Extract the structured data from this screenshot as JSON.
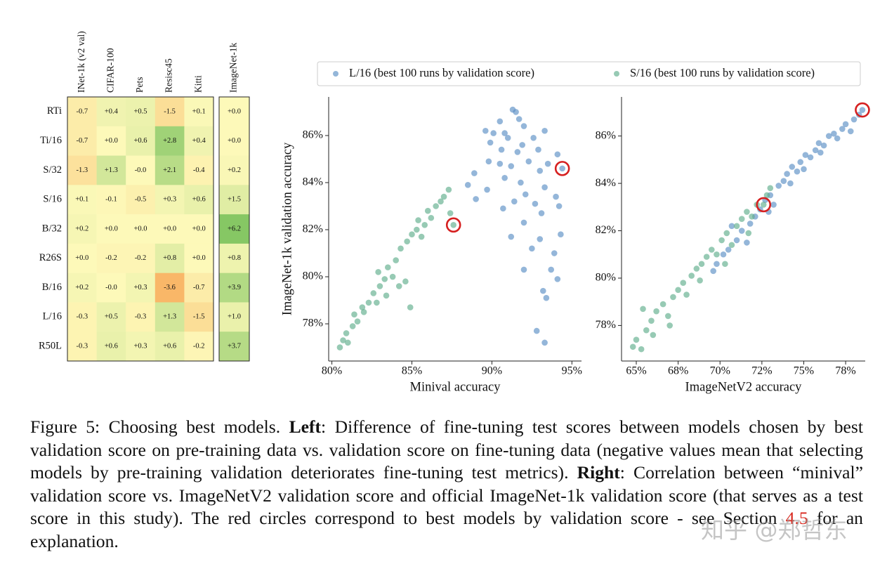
{
  "chart_data": [
    {
      "type": "heatmap",
      "rows": [
        "RTi",
        "Ti/16",
        "S/32",
        "S/16",
        "B/32",
        "R26S",
        "B/16",
        "L/16",
        "R50L"
      ],
      "columns": [
        "INet-1k (v2 val)",
        "CIFAR-100",
        "Pets",
        "Resisc45",
        "Kitti",
        "ImageNet-1k"
      ],
      "values": [
        [
          -0.7,
          0.4,
          0.5,
          -1.5,
          0.1,
          0.0
        ],
        [
          -0.7,
          0.0,
          0.6,
          2.8,
          0.4,
          0.0
        ],
        [
          -1.3,
          1.3,
          -0.0,
          2.1,
          -0.4,
          0.2
        ],
        [
          0.1,
          -0.1,
          -0.5,
          0.3,
          0.6,
          1.5
        ],
        [
          0.2,
          0.0,
          0.0,
          0.0,
          0.0,
          6.2
        ],
        [
          0.0,
          -0.2,
          -0.2,
          0.8,
          0.0,
          0.8
        ],
        [
          0.2,
          -0.0,
          0.3,
          -3.6,
          -0.7,
          3.9
        ],
        [
          -0.3,
          0.5,
          -0.3,
          1.3,
          -1.5,
          1.0
        ],
        [
          -0.3,
          0.6,
          0.3,
          0.6,
          -0.2,
          3.7
        ]
      ],
      "value_labels": [
        [
          "-0.7",
          "+0.4",
          "+0.5",
          "-1.5",
          "+0.1",
          "+0.0"
        ],
        [
          "-0.7",
          "+0.0",
          "+0.6",
          "+2.8",
          "+0.4",
          "+0.0"
        ],
        [
          "-1.3",
          "+1.3",
          "-0.0",
          "+2.1",
          "-0.4",
          "+0.2"
        ],
        [
          "+0.1",
          "-0.1",
          "-0.5",
          "+0.3",
          "+0.6",
          "+1.5"
        ],
        [
          "+0.2",
          "+0.0",
          "+0.0",
          "+0.0",
          "+0.0",
          "+6.2"
        ],
        [
          "+0.0",
          "-0.2",
          "-0.2",
          "+0.8",
          "+0.0",
          "+0.8"
        ],
        [
          "+0.2",
          "-0.0",
          "+0.3",
          "-3.6",
          "-0.7",
          "+3.9"
        ],
        [
          "-0.3",
          "+0.5",
          "-0.3",
          "+1.3",
          "-1.5",
          "+1.0"
        ],
        [
          "-0.3",
          "+0.6",
          "+0.3",
          "+0.6",
          "-0.2",
          "+3.7"
        ]
      ],
      "colors": [
        "#f9b768",
        "#fdf9b9",
        "#86c764"
      ]
    },
    {
      "type": "scatter",
      "x_label": "Minival accuracy",
      "y_label": "ImageNet-1k validation accuracy",
      "xlim": [
        79.8,
        95.6
      ],
      "ylim": [
        76.42,
        87.64
      ],
      "xticks": [
        {
          "value": 80,
          "label": "80%"
        },
        {
          "value": 85,
          "label": "85%"
        },
        {
          "value": 90,
          "label": "90%"
        },
        {
          "value": 95,
          "label": "95%"
        }
      ],
      "yticks": [
        {
          "value": 78,
          "label": "78%"
        },
        {
          "value": 80,
          "label": "80%"
        },
        {
          "value": 82,
          "label": "82%"
        },
        {
          "value": 84,
          "label": "84%"
        },
        {
          "value": 86,
          "label": "86%"
        }
      ],
      "series": [
        {
          "name": "L/16 (best 100 runs by validation score)",
          "color": "#5b8fc4",
          "x": [
            91.3,
            91.5,
            91.7,
            90.5,
            92.0,
            89.6,
            90.1,
            90.8,
            93.3,
            91.0,
            92.6,
            89.9,
            91.9,
            90.6,
            91.6,
            92.9,
            89.8,
            90.5,
            91.2,
            92.3,
            93.5,
            94.1,
            88.9,
            90.8,
            91.8,
            93.0,
            94.4,
            88.5,
            89.7,
            92.1,
            93.3,
            94.0,
            89.0,
            91.4,
            92.7,
            94.2,
            90.7,
            93.1,
            92.0,
            94.3,
            91.2,
            93.0,
            92.5,
            93.9,
            92.0,
            93.7,
            94.1,
            93.2,
            93.4,
            92.8,
            93.3
          ],
          "values": [
            87.1,
            87.0,
            86.7,
            86.6,
            86.4,
            86.2,
            86.1,
            86.1,
            86.2,
            85.9,
            85.9,
            85.7,
            85.6,
            85.4,
            85.3,
            85.4,
            84.9,
            84.8,
            84.7,
            84.9,
            84.8,
            85.2,
            84.4,
            84.2,
            84.0,
            84.5,
            84.6,
            83.9,
            83.7,
            83.5,
            83.8,
            83.4,
            83.3,
            83.2,
            83.1,
            83.0,
            82.9,
            82.7,
            82.3,
            81.8,
            81.7,
            81.6,
            81.2,
            81.0,
            80.3,
            80.3,
            79.9,
            79.4,
            79.1,
            77.7,
            77.2
          ]
        },
        {
          "name": "S/16 (best 100 runs by validation score)",
          "color": "#5fae8c",
          "x": [
            80.5,
            80.7,
            80.9,
            81.3,
            81.0,
            81.6,
            82.0,
            82.3,
            81.9,
            82.6,
            83.0,
            82.8,
            83.3,
            83.8,
            83.5,
            84.0,
            84.3,
            84.7,
            84.6,
            84.9,
            85.0,
            85.3,
            85.4,
            85.8,
            86.0,
            86.2,
            86.5,
            86.8,
            87.0,
            87.3,
            87.6,
            87.4,
            83.4,
            82.9,
            84.2,
            85.6,
            81.4
          ],
          "values": [
            77.0,
            77.3,
            77.6,
            77.9,
            77.2,
            78.1,
            78.5,
            78.9,
            78.7,
            79.3,
            79.6,
            78.9,
            79.9,
            80.0,
            80.4,
            80.7,
            81.2,
            81.5,
            79.8,
            78.7,
            81.8,
            82.0,
            82.4,
            82.2,
            82.8,
            82.5,
            83.0,
            83.2,
            83.4,
            83.7,
            82.2,
            82.7,
            79.2,
            80.2,
            79.6,
            81.7,
            78.4
          ]
        }
      ],
      "highlights": {
        "color": "#d62020",
        "x": [
          94.4,
          87.6
        ],
        "y": [
          84.6,
          82.2
        ]
      }
    },
    {
      "type": "scatter",
      "x_label": "ImageNetV2 accuracy",
      "xlim": [
        64.12,
        78.67
      ],
      "ylim": [
        76.5,
        87.65
      ],
      "xticks": [
        {
          "value": 65,
          "label": "65%"
        },
        {
          "value": 67.5,
          "label": "68%"
        },
        {
          "value": 70,
          "label": "70%"
        },
        {
          "value": 72.5,
          "label": "72%"
        },
        {
          "value": 75,
          "label": "75%"
        },
        {
          "value": 77.5,
          "label": "78%"
        }
      ],
      "yticks": [
        {
          "value": 78,
          "label": "78%"
        },
        {
          "value": 80,
          "label": "80%"
        },
        {
          "value": 82,
          "label": "82%"
        },
        {
          "value": 84,
          "label": "84%"
        },
        {
          "value": 86,
          "label": "86%"
        }
      ],
      "series": [
        {
          "color": "#5b8fc4",
          "x": [
            69.6,
            69.8,
            70.2,
            70.5,
            71.0,
            71.3,
            71.8,
            72.1,
            72.4,
            72.7,
            73.0,
            73.2,
            73.5,
            73.8,
            74.0,
            74.3,
            74.6,
            74.8,
            75.1,
            75.4,
            75.7,
            75.9,
            76.2,
            76.5,
            76.8,
            77.0,
            77.3,
            77.5,
            77.8,
            78.0,
            78.3,
            78.5,
            71.6,
            72.9,
            74.2,
            75.0,
            76.0,
            70.7
          ],
          "values": [
            80.3,
            80.6,
            81.0,
            81.2,
            81.6,
            82.0,
            82.3,
            82.6,
            82.9,
            83.3,
            83.5,
            83.1,
            83.9,
            84.1,
            84.4,
            84.7,
            84.5,
            84.9,
            85.2,
            85.1,
            85.4,
            85.7,
            85.6,
            86.0,
            86.1,
            85.9,
            86.3,
            86.5,
            86.2,
            86.7,
            86.9,
            87.1,
            81.5,
            82.8,
            84.0,
            84.6,
            85.3,
            82.2
          ]
        },
        {
          "color": "#5fae8c",
          "x": [
            64.8,
            65.0,
            65.3,
            65.6,
            65.9,
            66.2,
            66.6,
            66.9,
            67.2,
            67.5,
            67.8,
            68.0,
            68.3,
            68.6,
            68.9,
            69.2,
            69.5,
            69.8,
            70.1,
            70.4,
            70.7,
            71.0,
            71.3,
            71.6,
            71.9,
            72.2,
            72.6,
            72.8,
            73.0,
            66.0,
            67.0,
            68.8,
            70.3,
            71.7,
            65.4
          ],
          "values": [
            77.1,
            77.4,
            77.0,
            77.8,
            78.2,
            78.6,
            78.9,
            78.4,
            79.2,
            79.5,
            79.8,
            79.3,
            80.1,
            80.4,
            80.6,
            80.9,
            81.2,
            81.0,
            81.6,
            81.9,
            81.4,
            82.2,
            82.5,
            82.8,
            82.6,
            83.1,
            83.1,
            83.5,
            83.8,
            77.6,
            78.0,
            79.9,
            80.6,
            81.9,
            78.7
          ]
        }
      ],
      "highlights": {
        "color": "#d62020",
        "x": [
          78.5,
          72.6
        ],
        "y": [
          87.1,
          83.1
        ]
      }
    }
  ],
  "caption": {
    "prefix": "Figure 5: Choosing best models.",
    "left_label": "Left",
    "left_text": ": Difference of fine-tuning test scores between models chosen by best validation score on pre-training data vs. validation score on fine-tuning data (negative values mean that selecting models by pre-training validation deteriorates fine-tuning test metrics).",
    "right_label": "Right",
    "right_text": ": Correlation between “minival” validation score vs. ImageNetV2 validation score and official ImageNet-1k validation score (that serves as a test score in this study). The red circles correspond to best models by validation score - see Section",
    "section_ref": "4.5",
    "end": "for an explanation."
  },
  "watermark": "知乎 @郑哲东"
}
